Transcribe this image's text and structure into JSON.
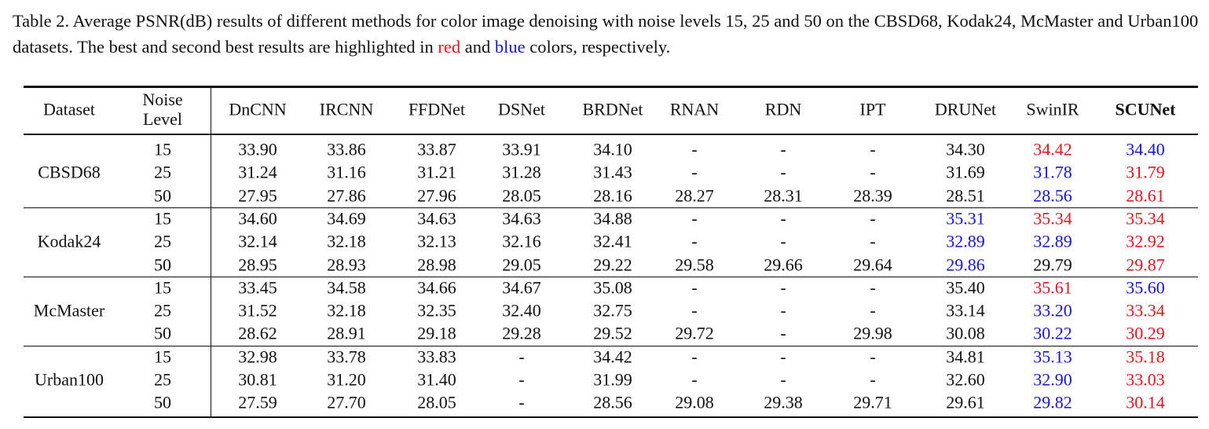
{
  "caption": [
    "Table 2.  Average PSNR(dB) results of different methods for color image denoising with noise levels 15, 25 and 50 on the CBSD68, Kodak24, McMaster and Urban100 datasets. The best and second best results are highlighted in ",
    {
      "text": "red",
      "color": "#e8141c"
    },
    " and ",
    {
      "text": "blue",
      "color": "#1414e0"
    },
    " colors, respectively."
  ],
  "table": {
    "header": [
      "Dataset",
      "Noise Level",
      "DnCNN",
      "IRCNN",
      "FFDNet",
      "DSNet",
      "BRDNet",
      "RNAN",
      "RDN",
      "IPT",
      "DRUNet",
      "SwinIR",
      {
        "text": "SCUNet",
        "bold": true
      }
    ],
    "groups": [
      {
        "dataset": "CBSD68",
        "rows": [
          [
            "15",
            "33.90",
            "33.86",
            "33.87",
            "33.91",
            "34.10",
            "-",
            "-",
            "-",
            "34.30",
            {
              "text": "34.42",
              "color": "#e8141c"
            },
            {
              "text": "34.40",
              "color": "#1414e0"
            }
          ],
          [
            "25",
            "31.24",
            "31.16",
            "31.21",
            "31.28",
            "31.43",
            "-",
            "-",
            "-",
            "31.69",
            {
              "text": "31.78",
              "color": "#1414e0"
            },
            {
              "text": "31.79",
              "color": "#e8141c"
            }
          ],
          [
            "50",
            "27.95",
            "27.86",
            "27.96",
            "28.05",
            "28.16",
            "28.27",
            "28.31",
            "28.39",
            "28.51",
            {
              "text": "28.56",
              "color": "#1414e0"
            },
            {
              "text": "28.61",
              "color": "#e8141c"
            }
          ]
        ]
      },
      {
        "dataset": "Kodak24",
        "rows": [
          [
            "15",
            "34.60",
            "34.69",
            "34.63",
            "34.63",
            "34.88",
            "-",
            "-",
            "-",
            {
              "text": "35.31",
              "color": "#1414e0"
            },
            {
              "text": "35.34",
              "color": "#e8141c"
            },
            {
              "text": "35.34",
              "color": "#e8141c"
            }
          ],
          [
            "25",
            "32.14",
            "32.18",
            "32.13",
            "32.16",
            "32.41",
            "-",
            "-",
            "-",
            {
              "text": "32.89",
              "color": "#1414e0"
            },
            {
              "text": "32.89",
              "color": "#1414e0"
            },
            {
              "text": "32.92",
              "color": "#e8141c"
            }
          ],
          [
            "50",
            "28.95",
            "28.93",
            "28.98",
            "29.05",
            "29.22",
            "29.58",
            "29.66",
            "29.64",
            {
              "text": "29.86",
              "color": "#1414e0"
            },
            "29.79",
            {
              "text": "29.87",
              "color": "#e8141c"
            }
          ]
        ]
      },
      {
        "dataset": "McMaster",
        "rows": [
          [
            "15",
            "33.45",
            "34.58",
            "34.66",
            "34.67",
            "35.08",
            "-",
            "-",
            "-",
            "35.40",
            {
              "text": "35.61",
              "color": "#e8141c"
            },
            {
              "text": "35.60",
              "color": "#1414e0"
            }
          ],
          [
            "25",
            "31.52",
            "32.18",
            "32.35",
            "32.40",
            "32.75",
            "-",
            "-",
            "-",
            "33.14",
            {
              "text": "33.20",
              "color": "#1414e0"
            },
            {
              "text": "33.34",
              "color": "#e8141c"
            }
          ],
          [
            "50",
            "28.62",
            "28.91",
            "29.18",
            "29.28",
            "29.52",
            "29.72",
            "-",
            "29.98",
            "30.08",
            {
              "text": "30.22",
              "color": "#1414e0"
            },
            {
              "text": "30.29",
              "color": "#e8141c"
            }
          ]
        ]
      },
      {
        "dataset": "Urban100",
        "rows": [
          [
            "15",
            "32.98",
            "33.78",
            "33.83",
            "-",
            "34.42",
            "-",
            "-",
            "-",
            "34.81",
            {
              "text": "35.13",
              "color": "#1414e0"
            },
            {
              "text": "35.18",
              "color": "#e8141c"
            }
          ],
          [
            "25",
            "30.81",
            "31.20",
            "31.40",
            "-",
            "31.99",
            "-",
            "-",
            "-",
            "32.60",
            {
              "text": "32.90",
              "color": "#1414e0"
            },
            {
              "text": "33.03",
              "color": "#e8141c"
            }
          ],
          [
            "50",
            "27.59",
            "27.70",
            "28.05",
            "-",
            "28.56",
            "29.08",
            "29.38",
            "29.71",
            "29.61",
            {
              "text": "29.82",
              "color": "#1414e0"
            },
            {
              "text": "30.14",
              "color": "#e8141c"
            }
          ]
        ]
      }
    ]
  }
}
